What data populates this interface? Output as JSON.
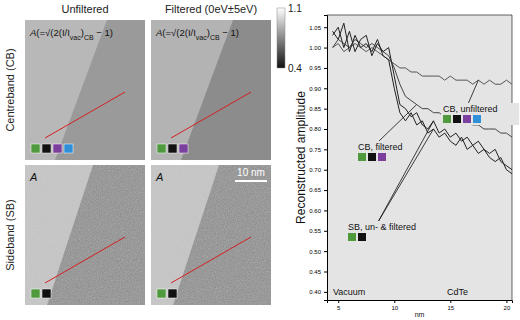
{
  "figure": {
    "column_titles": [
      "Unfiltered",
      "Filtered (0eV±5eV)"
    ],
    "row_titles": [
      "Centreband (CB)",
      "Sideband (SB)"
    ],
    "colorbar": {
      "range": [
        0.4,
        1.1
      ],
      "ticks": [
        1.1,
        0.4
      ]
    },
    "scale_bar": "10 nm",
    "panels": [
      [
        {
          "label": [
            {
              "text": "A"
            },
            {
              "text": "(=√(2(I/I"
            },
            {
              "text": "vac",
              "sub": true
            },
            {
              "text": ")"
            },
            {
              "text": "CB",
              "sub": true
            },
            {
              "text": " − 1)"
            }
          ],
          "marker_colors": [
            "#4e9a3c",
            "#111111",
            "#7b3f9e",
            "#2f8fd8"
          ]
        },
        {
          "label": [
            {
              "text": "A"
            },
            {
              "text": "(=√(2(I/I"
            },
            {
              "text": "vac",
              "sub": true
            },
            {
              "text": ")"
            },
            {
              "text": "CB",
              "sub": true
            },
            {
              "text": " − 1)"
            }
          ],
          "marker_colors": [
            "#4e9a3c",
            "#111111",
            "#7b3f9e"
          ]
        }
      ],
      [
        {
          "label": [
            {
              "text": "A"
            }
          ],
          "marker_colors": [
            "#4e9a3c",
            "#111111"
          ]
        },
        {
          "label": [
            {
              "text": "A"
            }
          ],
          "marker_colors": [
            "#4e9a3c",
            "#111111"
          ]
        }
      ]
    ]
  },
  "chart_data": {
    "type": "line",
    "y_label": "Reconstructed amplitude",
    "x_label": "nm",
    "xlim": [
      4,
      20.5
    ],
    "xticks": [
      5,
      10,
      15,
      20
    ],
    "ylim": [
      0.38,
      1.08
    ],
    "yticks": [
      {
        "value": 0.4,
        "label": "0.40"
      },
      0.45,
      {
        "value": 0.5,
        "label": "0.50"
      },
      0.55,
      {
        "value": 0.6,
        "label": "0.60"
      },
      0.65,
      {
        "value": 0.7,
        "label": "0.70"
      },
      0.75,
      {
        "value": 0.8,
        "label": "0.80"
      },
      0.85,
      {
        "value": 0.9,
        "label": "0.90"
      },
      0.95,
      {
        "value": 1.0,
        "label": "1.00"
      },
      1.05
    ],
    "x": [
      4.5,
      5,
      5.5,
      6,
      6.5,
      7,
      7.5,
      8,
      8.5,
      9,
      9.5,
      10,
      10.5,
      11,
      11.5,
      12,
      12.5,
      13,
      13.5,
      14,
      14.5,
      15,
      15.5,
      16,
      16.5,
      17,
      17.5,
      18,
      18.5,
      19,
      19.5,
      20,
      20.5
    ],
    "series": [
      {
        "color": "#555555",
        "values": [
          1.0,
          1.01,
          0.99,
          1.0,
          1.01,
          1.0,
          0.99,
          1.0,
          0.99,
          0.98,
          0.97,
          0.96,
          0.95,
          0.95,
          0.94,
          0.94,
          0.93,
          0.93,
          0.93,
          0.93,
          0.92,
          0.93,
          0.92,
          0.92,
          0.92,
          0.91,
          0.92,
          0.91,
          0.92,
          0.91,
          0.91,
          0.92,
          0.91
        ]
      },
      {
        "color": "#444444",
        "values": [
          1.0,
          1.02,
          1.01,
          1.0,
          1.02,
          1.01,
          1.0,
          1.01,
          1.0,
          0.99,
          0.98,
          0.95,
          0.91,
          0.88,
          0.87,
          0.86,
          0.85,
          0.85,
          0.84,
          0.84,
          0.83,
          0.83,
          0.82,
          0.82,
          0.82,
          0.81,
          0.81,
          0.8,
          0.8,
          0.8,
          0.79,
          0.79,
          0.78
        ]
      },
      {
        "color": "#222222",
        "values": [
          1.03,
          1.05,
          1.0,
          1.04,
          0.99,
          1.02,
          1.03,
          0.98,
          1.01,
          0.99,
          1.0,
          0.93,
          0.86,
          0.85,
          0.83,
          0.84,
          0.81,
          0.8,
          0.82,
          0.79,
          0.8,
          0.78,
          0.79,
          0.77,
          0.78,
          0.76,
          0.77,
          0.75,
          0.74,
          0.75,
          0.72,
          0.71,
          0.7
        ]
      },
      {
        "color": "#222222",
        "values": [
          1.04,
          1.02,
          1.06,
          0.99,
          1.03,
          1.0,
          1.01,
          0.99,
          1.02,
          0.98,
          0.97,
          0.9,
          0.84,
          0.82,
          0.84,
          0.81,
          0.82,
          0.79,
          0.8,
          0.78,
          0.79,
          0.77,
          0.76,
          0.78,
          0.75,
          0.76,
          0.74,
          0.75,
          0.73,
          0.72,
          0.73,
          0.7,
          0.69
        ]
      }
    ],
    "annotations": [
      {
        "text": "CB, unfiltered",
        "colors": [
          "#4e9a3c",
          "#111111",
          "#7b3f9e",
          "#2f8fd8"
        ],
        "series": [
          0
        ]
      },
      {
        "text": "CB, filtered",
        "colors": [
          "#4e9a3c",
          "#111111",
          "#7b3f9e"
        ],
        "series": [
          1
        ]
      },
      {
        "text": "SB, un- & filtered",
        "colors": [
          "#4e9a3c",
          "#111111"
        ],
        "series": [
          2,
          3
        ]
      }
    ],
    "regions": [
      "Vacuum",
      "CdTe"
    ]
  }
}
